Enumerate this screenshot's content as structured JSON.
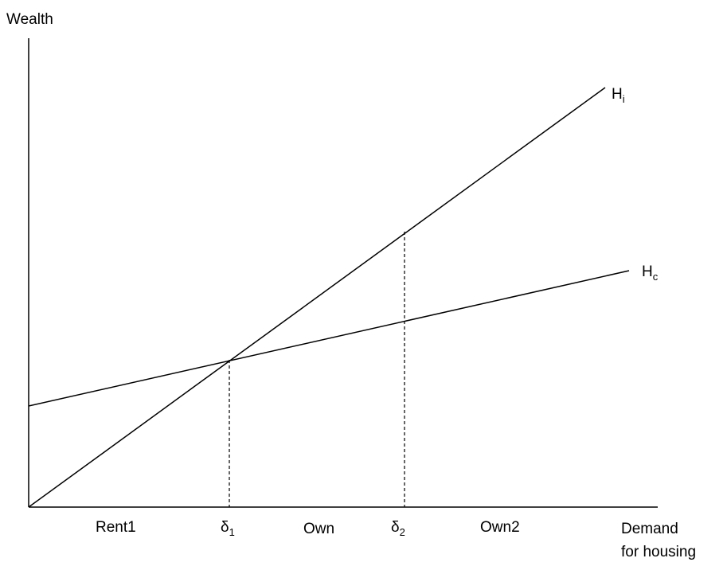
{
  "diagram": {
    "y_axis_label": "Wealth",
    "x_axis_label_line1": "Demand",
    "x_axis_label_line2": "for housing",
    "lines": [
      {
        "id": "Hi",
        "label_main": "H",
        "label_sub": "i"
      },
      {
        "id": "Hc",
        "label_main": "H",
        "label_sub": "c"
      }
    ],
    "thresholds": [
      {
        "label_main": "δ",
        "label_sub": "1"
      },
      {
        "label_main": "δ",
        "label_sub": "2"
      }
    ],
    "regions": [
      "Rent1",
      "Own",
      "Own2"
    ],
    "colors": {
      "stroke": "#000000",
      "background": "#ffffff"
    }
  }
}
